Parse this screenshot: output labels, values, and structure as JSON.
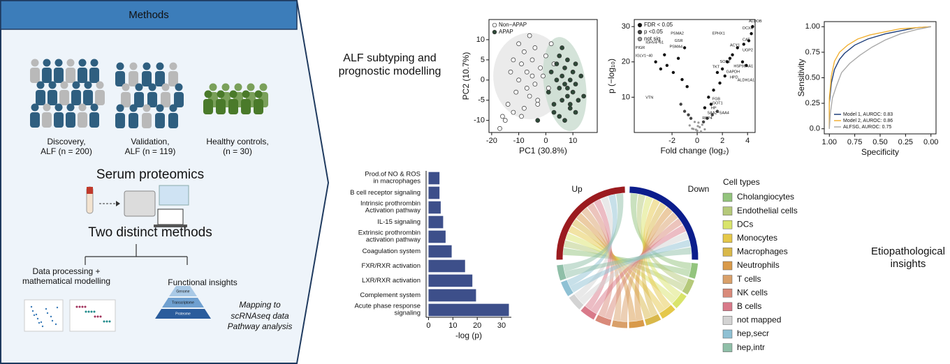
{
  "methods": {
    "title": "Methods",
    "cohorts": [
      "Discovery,\nALF (n = 200)",
      "Validation,\nALF (n = 119)",
      "Healthy controls,\n(n = 30)"
    ],
    "proteomics": "Serum proteomics",
    "two_methods": "Two distinct methods",
    "branches": [
      "Data processing +\nmathematical modelling",
      "Functional insights"
    ],
    "functional_note": "Mapping to\nscRNAseq data\nPathway analysis",
    "pyramid": [
      "Genome",
      "Transcriptome",
      "Proteome"
    ]
  },
  "section_labels": [
    "ALF subtyping and\nprognostic modelling",
    "Etiopathological\ninsights"
  ],
  "chart_data": [
    {
      "type": "scatter",
      "xlabel": "PC1 (30.8%)",
      "ylabel": "PC2 (10.7%)",
      "xlim": [
        -21,
        19
      ],
      "ylim": [
        -13,
        15
      ],
      "xticks": [
        -20,
        -10,
        0,
        10
      ],
      "yticks": [
        -10,
        -5,
        0,
        5,
        10
      ],
      "legend": "upper left",
      "series": [
        {
          "name": "Non−APAP",
          "color": "#ffffff",
          "x": [
            -17,
            -15,
            -14,
            -13,
            -12,
            -11,
            -10,
            -10,
            -9,
            -8,
            -8,
            -7,
            -6,
            -6,
            -5,
            -4,
            -4,
            -3,
            -2,
            -1,
            0,
            1,
            2,
            3,
            -12,
            -9,
            -7,
            -5,
            -3,
            -16
          ],
          "values": [
            -12,
            -10,
            -6,
            2,
            5,
            -3,
            9,
            0,
            4,
            -7,
            7,
            2,
            -4,
            11,
            5,
            -1,
            8,
            -6,
            3,
            1,
            6,
            -2,
            9,
            4,
            -8,
            -9,
            -2,
            1,
            -5,
            -9
          ]
        },
        {
          "name": "APAP",
          "color": "#2e4a38",
          "x": [
            1,
            2,
            3,
            4,
            4,
            5,
            5,
            6,
            6,
            7,
            7,
            8,
            8,
            9,
            9,
            10,
            10,
            11,
            11,
            12,
            13,
            3,
            5,
            7,
            9,
            11,
            6,
            8,
            14,
            -3
          ],
          "values": [
            -3,
            2,
            -6,
            0,
            4,
            -2,
            6,
            1,
            -5,
            3,
            -1,
            -4,
            5,
            0,
            -7,
            2,
            -3,
            4,
            -1,
            -5,
            1,
            -8,
            -9,
            -10,
            -6,
            -8,
            8,
            -2,
            -4,
            -10
          ]
        }
      ]
    },
    {
      "type": "scatter",
      "xlabel": "Fold change (log₂)",
      "ylabel": "p (−log₁₀)",
      "xlim": [
        -5,
        4.6
      ],
      "ylim": [
        0,
        32
      ],
      "xticks": [
        -2,
        0,
        2,
        4
      ],
      "yticks": [
        10,
        20,
        30
      ],
      "legend": "upper left",
      "series": [
        {
          "name": "FDR < 0.05",
          "color": "#111111",
          "x": [
            4.4,
            4.3,
            4.1,
            3.7,
            3.2,
            2.8,
            2.6,
            2.4,
            2.0,
            1.6,
            3.6,
            3.9,
            2.2,
            1.8,
            1.3,
            0.9,
            -1.0,
            -1.5,
            -2.6,
            -2.4,
            -1.9,
            -1.2,
            -0.8,
            -2.9,
            -3.3,
            1.1,
            0.6
          ],
          "values": [
            30,
            28,
            26,
            25,
            24,
            22,
            21,
            20,
            18,
            17,
            20,
            19,
            16,
            14,
            12,
            10,
            24,
            21,
            22,
            19,
            17,
            15,
            13,
            18,
            20,
            8,
            7
          ]
        },
        {
          "name": "p <0.05",
          "color": "#444444",
          "x": [
            -1.0,
            -0.7,
            0.8,
            1.2,
            -1.3,
            0.5,
            1.6,
            -0.5
          ],
          "values": [
            6,
            5,
            4,
            5,
            8,
            3,
            6,
            4
          ]
        },
        {
          "name": "not sig",
          "color": "#999999",
          "x": [
            -0.6,
            -0.3,
            0,
            0.2,
            0.4,
            -0.1,
            0.1,
            0.3,
            -0.4,
            0.6,
            -0.2,
            0.05
          ],
          "values": [
            2,
            1,
            0.5,
            1.5,
            2.2,
            0.8,
            2.8,
            0.3,
            1.1,
            0.9,
            3,
            1.8
          ]
        }
      ],
      "annotations": [
        {
          "text": "ALDOB",
          "x": 4.1,
          "y": 31.5
        },
        {
          "text": "DCXR",
          "x": 3.6,
          "y": 29.5
        },
        {
          "text": "EPHX1",
          "x": 1.2,
          "y": 28
        },
        {
          "text": "CAT",
          "x": 3.6,
          "y": 26.3
        },
        {
          "text": "ACY1",
          "x": 2.6,
          "y": 24.7
        },
        {
          "text": "UGP2",
          "x": 3.6,
          "y": 23.3
        },
        {
          "text": "PSMA2",
          "x": -2.1,
          "y": 28
        },
        {
          "text": "GSR",
          "x": -1.8,
          "y": 26
        },
        {
          "text": "PSMA4",
          "x": -2.2,
          "y": 24.3
        },
        {
          "text": "HSP90AA1",
          "x": 2.9,
          "y": 18.8
        },
        {
          "text": "ALDH1A1",
          "x": 3.2,
          "y": 14.8
        },
        {
          "text": "GAPDH",
          "x": 2.3,
          "y": 17.2
        },
        {
          "text": "TKT",
          "x": 1.2,
          "y": 18.6
        },
        {
          "text": "SOD2",
          "x": 1.8,
          "y": 20
        },
        {
          "text": "HPD",
          "x": 2.6,
          "y": 15.6
        },
        {
          "text": "PIGR",
          "x": -4.9,
          "y": 24
        },
        {
          "text": "IGLV1−40",
          "x": -4.9,
          "y": 21.7
        },
        {
          "text": "IGHV4−61",
          "x": -4.1,
          "y": 25.5
        },
        {
          "text": "FGB",
          "x": 1.2,
          "y": 9.5
        },
        {
          "text": "HP",
          "x": 1.1,
          "y": 6.9
        },
        {
          "text": "SAA2−SAA4",
          "x": 0.8,
          "y": 5.5
        },
        {
          "text": "RBP4",
          "x": 0.4,
          "y": 4
        },
        {
          "text": "VTN",
          "x": -4.1,
          "y": 9.9
        },
        {
          "text": "GOT1",
          "x": 1.2,
          "y": 8.3
        }
      ]
    },
    {
      "type": "line",
      "xlabel": "Specificity",
      "ylabel": "Sensitivity",
      "xlim": [
        1.05,
        -0.05
      ],
      "ylim": [
        -0.05,
        1.05
      ],
      "xticks": [
        {
          "value": 1,
          "label": "1.00"
        },
        0.75,
        {
          "value": 0.5,
          "label": "0.50"
        },
        0.25,
        {
          "value": 0,
          "label": "0.00"
        }
      ],
      "yticks": [
        {
          "value": 0,
          "label": "0.0"
        },
        0.25,
        {
          "value": 0.5,
          "label": "0.50"
        },
        0.75,
        {
          "value": 1,
          "label": "1.00"
        }
      ],
      "legend": "lower right",
      "series": [
        {
          "name": "Model 1, AUROC: 0.83",
          "color": "#1f3f7a",
          "x": [
            1,
            1,
            0.98,
            0.95,
            0.9,
            0.85,
            0.75,
            0.62,
            0.45,
            0.3,
            0.15,
            0
          ],
          "values": [
            0,
            0.25,
            0.45,
            0.58,
            0.68,
            0.74,
            0.82,
            0.88,
            0.93,
            0.96,
            0.99,
            1
          ]
        },
        {
          "name": "Model 2, AUROC: 0.86",
          "color": "#f2b134",
          "x": [
            1,
            1,
            0.98,
            0.95,
            0.9,
            0.82,
            0.72,
            0.6,
            0.45,
            0.3,
            0.15,
            0
          ],
          "values": [
            0,
            0.3,
            0.52,
            0.66,
            0.75,
            0.82,
            0.88,
            0.92,
            0.95,
            0.98,
            0.99,
            1
          ]
        },
        {
          "name": "ALFSG, AUROC: 0.75",
          "color": "#aaaaaa",
          "x": [
            1,
            0.99,
            0.97,
            0.93,
            0.88,
            0.8,
            0.7,
            0.58,
            0.45,
            0.3,
            0.15,
            0
          ],
          "values": [
            0,
            0.15,
            0.3,
            0.42,
            0.55,
            0.64,
            0.72,
            0.8,
            0.87,
            0.93,
            0.97,
            1
          ]
        }
      ]
    },
    {
      "type": "bar",
      "orientation": "horizontal",
      "xlabel": "-log (p)",
      "color": "#3d4f8a",
      "xlim": [
        -1,
        34
      ],
      "xticks": [
        0,
        10,
        20,
        30
      ],
      "categories": [
        "Prod.of NO & ROS\nin macrophages",
        "B cell receptor signaling",
        "Intrinsic prothrombin\nActivation pathway",
        "IL-15 signaling",
        "Extrinsic prothrombin\nactivation pathway",
        "Coagulation system",
        "FXR/RXR activation",
        "LXR/RXR activation",
        "Complement system",
        "Acute phase response\nsignaling"
      ],
      "values": [
        4.5,
        4.5,
        5,
        6,
        7,
        9.5,
        15,
        18,
        19.5,
        33
      ]
    }
  ],
  "chord": {
    "arcs": [
      {
        "name": "Up",
        "color": "#9b1b1f"
      },
      {
        "name": "Down",
        "color": "#0b1d8c"
      }
    ],
    "legend_title": "Cell types",
    "cell_types": [
      {
        "name": "Cholangiocytes",
        "color": "#93c47d"
      },
      {
        "name": "Endothelial cells",
        "color": "#b5c97a"
      },
      {
        "name": "DCs",
        "color": "#d9e46b"
      },
      {
        "name": "Monocytes",
        "color": "#e5c84a"
      },
      {
        "name": "Macrophages",
        "color": "#d9b84a"
      },
      {
        "name": "Neutrophils",
        "color": "#d99a4a"
      },
      {
        "name": "T cells",
        "color": "#d9a06a"
      },
      {
        "name": "NK cells",
        "color": "#d98a7a"
      },
      {
        "name": "B cells",
        "color": "#d97a8a"
      },
      {
        "name": "not mapped",
        "color": "#d3d3d3"
      },
      {
        "name": "hep,secr",
        "color": "#8fc1d4"
      },
      {
        "name": "hep,intr",
        "color": "#8fbfa8"
      }
    ]
  }
}
